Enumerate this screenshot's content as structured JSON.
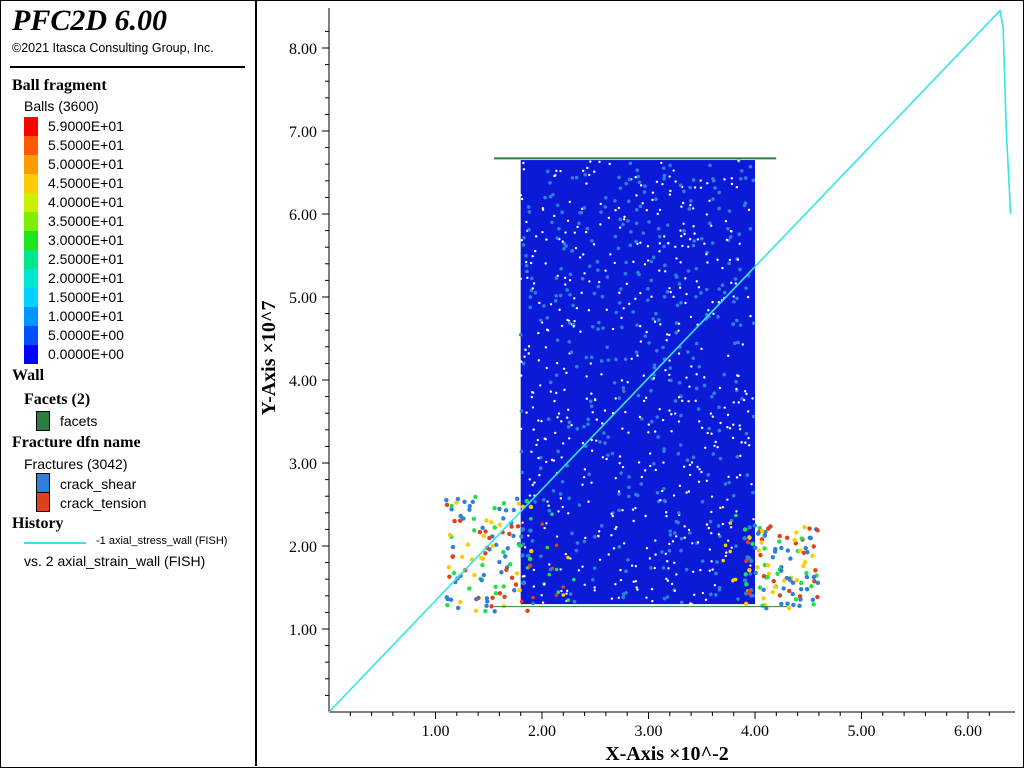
{
  "app": {
    "title": "PFC2D 6.00",
    "copyright": "©2021 Itasca Consulting Group, Inc."
  },
  "legend": {
    "ball_section": "Ball fragment",
    "balls_label": "Balls (3600)",
    "scale": [
      {
        "label": "5.9000E+01",
        "color": "#ff0000"
      },
      {
        "label": "5.5000E+01",
        "color": "#ff5a00"
      },
      {
        "label": "5.0000E+01",
        "color": "#ff9a00"
      },
      {
        "label": "4.5000E+01",
        "color": "#ffcc00"
      },
      {
        "label": "4.0000E+01",
        "color": "#c8f000"
      },
      {
        "label": "3.5000E+01",
        "color": "#7cf000"
      },
      {
        "label": "3.0000E+01",
        "color": "#1ee61e"
      },
      {
        "label": "2.5000E+01",
        "color": "#00e68a"
      },
      {
        "label": "2.0000E+01",
        "color": "#00e6d2"
      },
      {
        "label": "1.5000E+01",
        "color": "#00d2ff"
      },
      {
        "label": "1.0000E+01",
        "color": "#0096ff"
      },
      {
        "label": "5.0000E+00",
        "color": "#0050ff"
      },
      {
        "label": "0.0000E+00",
        "color": "#0000ff"
      }
    ],
    "wall_section": "Wall",
    "facets_title": "Facets (2)",
    "facets_item": "facets",
    "facets_color": "#2e7d40",
    "fracture_section": "Fracture dfn name",
    "fractures_label": "Fractures (3042)",
    "fracture_items": [
      {
        "label": "crack_shear",
        "color": "#2f7fdc"
      },
      {
        "label": "crack_tension",
        "color": "#e0401a"
      }
    ],
    "history_section": "History",
    "history_line1": "-1 axial_stress_wall (FISH)",
    "history_line2": "vs. 2 axial_strain_wall (FISH)",
    "history_color": "#30e6e6"
  },
  "chart_data": {
    "type": "line",
    "xlabel": "X-Axis ×10^-2",
    "ylabel": "Y-Axis ×10^7",
    "xlim": [
      0,
      6.4
    ],
    "ylim": [
      0,
      8.5
    ],
    "x_ticks": [
      "1.00",
      "2.00",
      "3.00",
      "4.00",
      "5.00",
      "6.00"
    ],
    "y_ticks": [
      "1.00",
      "2.00",
      "3.00",
      "4.00",
      "5.00",
      "6.00",
      "7.00",
      "8.00"
    ],
    "series": [
      {
        "name": "-1 axial_stress_wall (FISH)",
        "x": [
          0,
          6.3,
          6.33,
          6.36,
          6.4
        ],
        "y": [
          0,
          8.45,
          8.25,
          7.0,
          6.0
        ]
      }
    ]
  }
}
